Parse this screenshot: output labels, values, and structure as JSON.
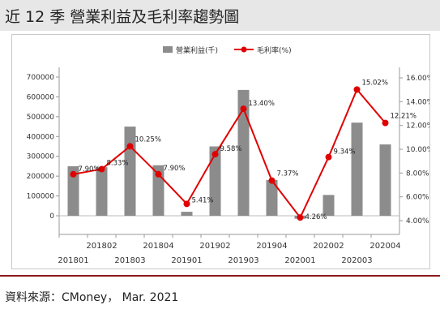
{
  "title": "近 12 季  營業利益及毛利率趨勢圖",
  "source": "資料來源：CMoney，   Mar. 2021",
  "chart_data": {
    "type": "bar+line",
    "categories": [
      "201801",
      "201802",
      "201803",
      "201804",
      "201901",
      "201902",
      "201903",
      "201904",
      "202001",
      "202002",
      "202003",
      "202004"
    ],
    "series": [
      {
        "name": "營業利益(千)",
        "type": "bar",
        "axis": "left",
        "color": "#8c8c8c",
        "values": [
          250000,
          245000,
          450000,
          255000,
          20000,
          350000,
          635000,
          180000,
          -15000,
          105000,
          470000,
          360000
        ]
      },
      {
        "name": "毛利率(%)",
        "type": "line",
        "axis": "right",
        "color": "#e00000",
        "values": [
          7.9,
          8.33,
          10.25,
          7.9,
          5.41,
          9.58,
          13.4,
          7.37,
          4.26,
          9.34,
          15.02,
          12.21
        ],
        "labels": [
          "7.90%",
          "8.33%",
          "10.25%",
          "7.90%",
          "5.41%",
          "9.58%",
          "13.40%",
          "7.37%",
          "4.26%",
          "9.34%",
          "15.02%",
          "12.21%"
        ]
      }
    ],
    "left_axis": {
      "ticks": [
        "0",
        "100000",
        "200000",
        "300000",
        "400000",
        "500000",
        "600000",
        "700000"
      ],
      "ylim": [
        0,
        700000
      ]
    },
    "right_axis": {
      "ticks": [
        "4.00%",
        "6.00%",
        "8.00%",
        "10.00%",
        "12.00%",
        "14.00%",
        "16.00%"
      ],
      "ylim": [
        4,
        16
      ]
    },
    "legend_position": "top-center",
    "grid": false
  }
}
